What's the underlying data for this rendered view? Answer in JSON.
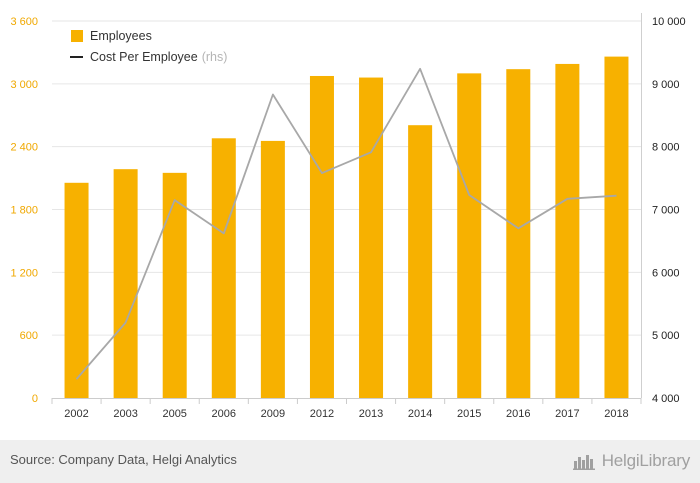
{
  "chart_data": {
    "type": "bar",
    "categories": [
      "2002",
      "2003",
      "2005",
      "2006",
      "2009",
      "2012",
      "2013",
      "2014",
      "2015",
      "2016",
      "2017",
      "2018"
    ],
    "series": [
      {
        "name": "Employees",
        "type": "bar",
        "axis": "left",
        "color": "#f7b100",
        "values": [
          2055,
          2185,
          2150,
          2480,
          2455,
          3075,
          3060,
          2605,
          3100,
          3140,
          3190,
          3260
        ]
      },
      {
        "name": "Cost Per Employee",
        "name_suffix": "(rhs)",
        "type": "line",
        "axis": "right",
        "color": "#a8a8a8",
        "values": [
          4300,
          5200,
          7150,
          6620,
          8830,
          7580,
          7910,
          9240,
          7230,
          6700,
          7170,
          7220
        ]
      }
    ],
    "y_left": {
      "ticks": [
        "0",
        "600",
        "1 200",
        "1 800",
        "2 400",
        "3 000",
        "3 600"
      ],
      "range": [
        0,
        3600
      ],
      "tick_color": "#f0a800"
    },
    "y_right": {
      "ticks": [
        "4 000",
        "5 000",
        "6 000",
        "7 000",
        "8 000",
        "9 000",
        "10 000"
      ],
      "range": [
        4000,
        10000
      ],
      "tick_color": "#222222"
    },
    "grid": true,
    "legend_position": "top-left"
  },
  "footer": {
    "source": "Source: Company Data, Helgi Analytics",
    "logo_text": "HelgiLibrary",
    "logo_icon": "city-skyline-icon"
  }
}
